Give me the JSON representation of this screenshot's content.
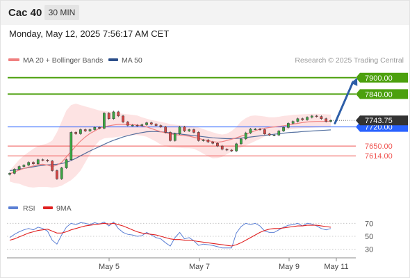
{
  "header": {
    "title": "Cac 40",
    "timeframe": "30 MIN"
  },
  "timestamp": "Monday, May 12, 2025 7:56:17 AM CET",
  "legend": {
    "ma20_label": "MA 20 + Bollinger Bands",
    "ma50_label": "MA 50",
    "credit": "Research © 2025 Trading Central",
    "rsi_label": "RSI",
    "rsi_ma_label": "9MA"
  },
  "colors": {
    "ma20": "#f08080",
    "ma50": "#2c4f8a",
    "bollinger_fill": "#fde0e0",
    "resistance": "#4ca00e",
    "support": "#ef5350",
    "pivot": "#2962ff",
    "price_label": "#333333",
    "rsi": "#5b7fd4",
    "rsi_ma": "#e02020",
    "arrow": "#2d5ea8",
    "bull_candle": "#3aa844",
    "bear_candle": "#d64545"
  },
  "chart_data": [
    {
      "type": "candlestick",
      "instrument": "Cac 40",
      "interval": "30 MIN",
      "ylim": [
        7490,
        7930
      ],
      "x_ticks": [
        "May 5",
        "May 7",
        "May 9",
        "May 11"
      ],
      "levels": [
        {
          "value": 7900,
          "label": "7900.00",
          "kind": "resistance"
        },
        {
          "value": 7840,
          "label": "7840.00",
          "kind": "resistance"
        },
        {
          "value": 7720,
          "label": "7720.00",
          "kind": "pivot"
        },
        {
          "value": 7650,
          "label": "7650.00",
          "kind": "support"
        },
        {
          "value": 7614,
          "label": "7614.00",
          "kind": "support"
        }
      ],
      "last_price": {
        "value": 7743.75,
        "label": "7743.75"
      },
      "projection": {
        "from": 7733,
        "to": 7900
      },
      "close": [
        7550,
        7565,
        7575,
        7580,
        7590,
        7585,
        7600,
        7598,
        7595,
        7560,
        7530,
        7570,
        7600,
        7700,
        7695,
        7710,
        7705,
        7710,
        7718,
        7715,
        7770,
        7750,
        7775,
        7760,
        7738,
        7726,
        7726,
        7725,
        7728,
        7735,
        7730,
        7725,
        7720,
        7700,
        7670,
        7695,
        7720,
        7705,
        7710,
        7700,
        7670,
        7672,
        7665,
        7660,
        7650,
        7638,
        7635,
        7632,
        7658,
        7676,
        7698,
        7712,
        7712,
        7710,
        7694,
        7690,
        7690,
        7705,
        7718,
        7733,
        7740,
        7750,
        7746,
        7755,
        7760,
        7758,
        7750,
        7740,
        7743.75
      ],
      "ma20": [
        7548,
        7555,
        7562,
        7568,
        7573,
        7577,
        7582,
        7583,
        7580,
        7575,
        7580,
        7590,
        7610,
        7630,
        7650,
        7668,
        7683,
        7696,
        7705,
        7715,
        7720,
        7724,
        7727,
        7729,
        7729,
        7728,
        7728,
        7727,
        7724,
        7720,
        7714,
        7708,
        7702,
        7698,
        7695,
        7692,
        7690,
        7688,
        7686,
        7682,
        7678,
        7673,
        7670,
        7666,
        7664,
        7666,
        7670,
        7675,
        7680,
        7686,
        7692,
        7700,
        7706,
        7711,
        7715,
        7718,
        7720,
        7722,
        7724,
        7727,
        7730,
        7733,
        7736,
        7738,
        7739,
        7740,
        7740,
        7740,
        7741
      ],
      "bollinger_upper": [
        7560,
        7580,
        7600,
        7615,
        7628,
        7640,
        7650,
        7655,
        7660,
        7670,
        7700,
        7740,
        7780,
        7800,
        7805,
        7800,
        7795,
        7790,
        7785,
        7780,
        7778,
        7776,
        7775,
        7770,
        7768,
        7766,
        7764,
        7762,
        7755,
        7750,
        7745,
        7742,
        7738,
        7735,
        7730,
        7728,
        7726,
        7725,
        7724,
        7722,
        7718,
        7712,
        7706,
        7700,
        7695,
        7692,
        7695,
        7705,
        7720,
        7740,
        7752,
        7760,
        7762,
        7760,
        7758,
        7755,
        7755,
        7757,
        7760,
        7762,
        7764,
        7765,
        7766,
        7767,
        7768,
        7768,
        7767,
        7766,
        7765
      ],
      "bollinger_lower": [
        7520,
        7515,
        7512,
        7505,
        7500,
        7498,
        7500,
        7500,
        7500,
        7498,
        7500,
        7505,
        7515,
        7525,
        7540,
        7560,
        7590,
        7620,
        7650,
        7670,
        7678,
        7680,
        7681,
        7684,
        7686,
        7688,
        7690,
        7690,
        7688,
        7684,
        7675,
        7666,
        7655,
        7650,
        7645,
        7644,
        7643,
        7642,
        7642,
        7640,
        7632,
        7622,
        7612,
        7605,
        7606,
        7610,
        7620,
        7630,
        7638,
        7645,
        7652,
        7660,
        7668,
        7676,
        7685,
        7690,
        7695,
        7700,
        7705,
        7710,
        7712,
        7714,
        7715,
        7716,
        7717,
        7718,
        7719,
        7720,
        7721
      ],
      "ma50": [
        7560,
        7562,
        7565,
        7568,
        7571,
        7574,
        7577,
        7579,
        7581,
        7582,
        7583,
        7586,
        7590,
        7597,
        7605,
        7614,
        7623,
        7632,
        7640,
        7648,
        7656,
        7664,
        7671,
        7677,
        7683,
        7688,
        7692,
        7696,
        7699,
        7702,
        7703,
        7703,
        7702,
        7700,
        7698,
        7696,
        7694,
        7692,
        7690,
        7688,
        7686,
        7684,
        7682,
        7680,
        7679,
        7678,
        7677,
        7677,
        7678,
        7679,
        7681,
        7683,
        7685,
        7687,
        7689,
        7691,
        7693,
        7695,
        7697,
        7699,
        7700,
        7701,
        7703,
        7704,
        7705,
        7706,
        7707,
        7708,
        7709
      ]
    },
    {
      "type": "line",
      "title": "RSI",
      "ylim": [
        20,
        80
      ],
      "y_ticks": [
        30,
        50,
        70
      ],
      "series": [
        {
          "name": "RSI",
          "values": [
            48,
            53,
            57,
            60,
            62,
            60,
            64,
            62,
            58,
            44,
            38,
            52,
            64,
            70,
            68,
            71,
            70,
            68,
            71,
            69,
            72,
            66,
            72,
            62,
            56,
            53,
            52,
            50,
            51,
            56,
            52,
            48,
            46,
            40,
            35,
            48,
            56,
            46,
            48,
            43,
            36,
            38,
            37,
            36,
            34,
            32,
            32,
            32,
            55,
            65,
            70,
            68,
            70,
            66,
            58,
            56,
            56,
            60,
            64,
            67,
            68,
            70,
            66,
            70,
            69,
            66,
            62,
            60,
            62
          ]
        },
        {
          "name": "9MA",
          "values": [
            44,
            46,
            49,
            52,
            55,
            57,
            59,
            60,
            61,
            58,
            55,
            55,
            57,
            60,
            62,
            64,
            66,
            67,
            68,
            69,
            70,
            69,
            70,
            68,
            66,
            63,
            60,
            57,
            55,
            54,
            53,
            52,
            50,
            48,
            46,
            45,
            45,
            44,
            44,
            43,
            42,
            41,
            40,
            39,
            38,
            37,
            36,
            35,
            37,
            40,
            44,
            48,
            52,
            56,
            59,
            61,
            62,
            62,
            63,
            64,
            65,
            66,
            66,
            67,
            67,
            67,
            66,
            65,
            64
          ]
        }
      ]
    }
  ]
}
